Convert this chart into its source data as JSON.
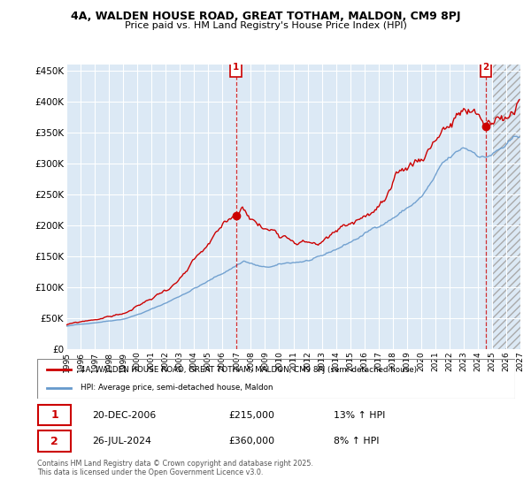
{
  "title1": "4A, WALDEN HOUSE ROAD, GREAT TOTHAM, MALDON, CM9 8PJ",
  "title2": "Price paid vs. HM Land Registry's House Price Index (HPI)",
  "xlim_start": 1995.0,
  "xlim_end": 2027.0,
  "ylim_min": 0,
  "ylim_max": 460000,
  "yticks": [
    0,
    50000,
    100000,
    150000,
    200000,
    250000,
    300000,
    350000,
    400000,
    450000
  ],
  "ytick_labels": [
    "£0",
    "£50K",
    "£100K",
    "£150K",
    "£200K",
    "£250K",
    "£300K",
    "£350K",
    "£400K",
    "£450K"
  ],
  "plot_bg_color": "#dce9f5",
  "grid_color": "#ffffff",
  "hpi_color": "#6699cc",
  "price_color": "#cc0000",
  "sale1_x": 2006.97,
  "sale1_y": 215000,
  "sale2_x": 2024.57,
  "sale2_y": 360000,
  "legend_line1": "4A, WALDEN HOUSE ROAD, GREAT TOTHAM, MALDON, CM9 8PJ (semi-detached house)",
  "legend_line2": "HPI: Average price, semi-detached house, Maldon",
  "annotation1_date": "20-DEC-2006",
  "annotation1_price": "£215,000",
  "annotation1_hpi": "13% ↑ HPI",
  "annotation2_date": "26-JUL-2024",
  "annotation2_price": "£360,000",
  "annotation2_hpi": "8% ↑ HPI",
  "footer": "Contains HM Land Registry data © Crown copyright and database right 2025.\nThis data is licensed under the Open Government Licence v3.0.",
  "future_start": 2025.0,
  "future_end": 2027.0
}
